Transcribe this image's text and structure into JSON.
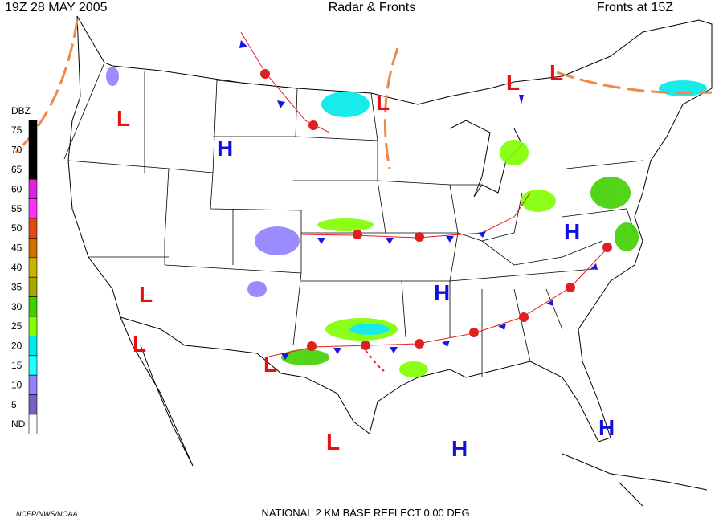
{
  "header": {
    "time": "19Z  28 MAY  2005",
    "title": "Radar & Fronts",
    "fronts_time": "Fronts at 15Z"
  },
  "footer": {
    "credit": "NCEP/NWS/NOAA",
    "product": "NATIONAL 2 KM BASE REFLECT 0.00 DEG"
  },
  "legend": {
    "title": "DBZ",
    "levels": [
      {
        "label": "75",
        "color": "#000000"
      },
      {
        "label": "70",
        "color": "#000000"
      },
      {
        "label": "65",
        "color": "#000000"
      },
      {
        "label": "60",
        "color": "#e020e0"
      },
      {
        "label": "55",
        "color": "#ff30ff"
      },
      {
        "label": "50",
        "color": "#e04a10"
      },
      {
        "label": "45",
        "color": "#d07000"
      },
      {
        "label": "40",
        "color": "#c8b400"
      },
      {
        "label": "35",
        "color": "#a8a800"
      },
      {
        "label": "30",
        "color": "#40d000"
      },
      {
        "label": "25",
        "color": "#80ff00"
      },
      {
        "label": "20",
        "color": "#00e8e8"
      },
      {
        "label": "15",
        "color": "#20ffff"
      },
      {
        "label": "10",
        "color": "#9080ff"
      },
      {
        "label": "5",
        "color": "#7860c0"
      },
      {
        "label": "ND",
        "color": "#ffffff"
      }
    ]
  },
  "pressure_centers": [
    {
      "label": "L"
    },
    {
      "label": "H"
    },
    {
      "label": "L"
    },
    {
      "label": "L"
    },
    {
      "label": "L"
    },
    {
      "label": "H"
    },
    {
      "label": "H"
    },
    {
      "label": "L"
    },
    {
      "label": "L"
    },
    {
      "label": "L"
    },
    {
      "label": "L"
    },
    {
      "label": "H"
    },
    {
      "label": "H"
    }
  ]
}
